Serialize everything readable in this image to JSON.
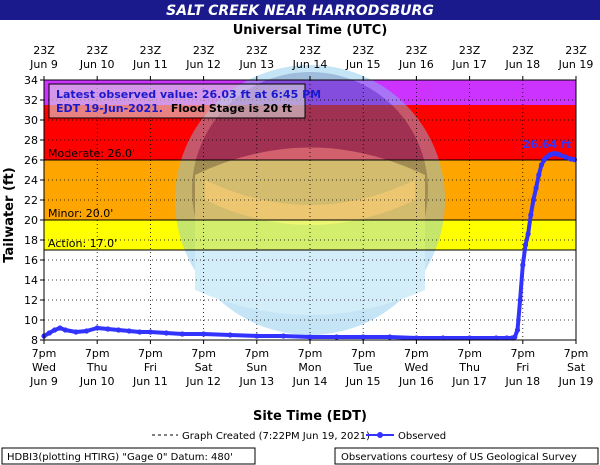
{
  "header": {
    "title": "SALT CREEK NEAR HARRODSBURG",
    "top_axis_title": "Universal Time (UTC)"
  },
  "chart_data": {
    "type": "line",
    "title": "SALT CREEK NEAR HARRODSBURG",
    "xlabel": "Site Time (EDT)",
    "x2label": "Universal Time (UTC)",
    "ylabel": "Tailwater (ft)",
    "ylim": [
      8,
      34
    ],
    "yticks": [
      8,
      10,
      12,
      14,
      16,
      18,
      20,
      22,
      24,
      26,
      28,
      30,
      32,
      34
    ],
    "xlim": [
      0,
      10
    ],
    "x_ticks_bottom": [
      {
        "time": "7pm",
        "day": "Wed",
        "date": "Jun 9"
      },
      {
        "time": "7pm",
        "day": "Thu",
        "date": "Jun 10"
      },
      {
        "time": "7pm",
        "day": "Fri",
        "date": "Jun 11"
      },
      {
        "time": "7pm",
        "day": "Sat",
        "date": "Jun 12"
      },
      {
        "time": "7pm",
        "day": "Sun",
        "date": "Jun 13"
      },
      {
        "time": "7pm",
        "day": "Mon",
        "date": "Jun 14"
      },
      {
        "time": "7pm",
        "day": "Tue",
        "date": "Jun 15"
      },
      {
        "time": "7pm",
        "day": "Wed",
        "date": "Jun 16"
      },
      {
        "time": "7pm",
        "day": "Thu",
        "date": "Jun 17"
      },
      {
        "time": "7pm",
        "day": "Fri",
        "date": "Jun 18"
      },
      {
        "time": "7pm",
        "day": "Sat",
        "date": "Jun 19"
      }
    ],
    "x_ticks_top": [
      {
        "time": "23Z",
        "date": "Jun 9"
      },
      {
        "time": "23Z",
        "date": "Jun 10"
      },
      {
        "time": "23Z",
        "date": "Jun 11"
      },
      {
        "time": "23Z",
        "date": "Jun 12"
      },
      {
        "time": "23Z",
        "date": "Jun 13"
      },
      {
        "time": "23Z",
        "date": "Jun 14"
      },
      {
        "time": "23Z",
        "date": "Jun 15"
      },
      {
        "time": "23Z",
        "date": "Jun 16"
      },
      {
        "time": "23Z",
        "date": "Jun 17"
      },
      {
        "time": "23Z",
        "date": "Jun 18"
      },
      {
        "time": "23Z",
        "date": "Jun 19"
      }
    ],
    "flood_bands": [
      {
        "name": "Action",
        "label": "Action: 17.0'",
        "from": 17,
        "to": 20,
        "color": "#ffff00"
      },
      {
        "name": "Minor",
        "label": "Minor: 20.0'",
        "from": 20,
        "to": 26,
        "color": "#ffa500"
      },
      {
        "name": "Moderate",
        "label": "Moderate: 26.0'",
        "from": 26,
        "to": 31.5,
        "color": "#ff0000"
      },
      {
        "name": "Major",
        "label": "",
        "from": 31.5,
        "to": 34,
        "color": "#cc33ff"
      }
    ],
    "annotations": {
      "latest_line1": "Latest observed value: 26.03 ft at 6:45 PM",
      "latest_line2": "EDT 19-Jun-2021.",
      "flood_stage": "Flood Stage is 20 ft",
      "peak_label": "26.64 ft"
    },
    "series": [
      {
        "name": "Observed",
        "color": "#3333ff",
        "x": [
          0.0,
          0.1,
          0.2,
          0.3,
          0.4,
          0.6,
          0.8,
          1.0,
          1.2,
          1.4,
          1.6,
          1.8,
          2.0,
          2.3,
          2.6,
          3.0,
          3.5,
          4.0,
          4.5,
          5.0,
          5.5,
          6.0,
          6.5,
          7.0,
          7.5,
          8.0,
          8.5,
          8.7,
          8.8,
          8.85,
          8.9,
          8.95,
          9.0,
          9.05,
          9.1,
          9.15,
          9.2,
          9.25,
          9.3,
          9.35,
          9.4,
          9.45,
          9.5,
          9.55,
          9.6,
          9.65,
          9.7,
          9.8,
          9.9,
          9.97
        ],
        "values": [
          8.4,
          8.7,
          9.0,
          9.2,
          9.0,
          8.8,
          8.9,
          9.2,
          9.1,
          9.0,
          8.9,
          8.8,
          8.8,
          8.7,
          8.6,
          8.6,
          8.5,
          8.4,
          8.4,
          8.3,
          8.3,
          8.3,
          8.3,
          8.2,
          8.2,
          8.2,
          8.2,
          8.2,
          8.2,
          8.3,
          9.0,
          12.0,
          15.5,
          17.5,
          18.6,
          20.5,
          22.0,
          23.2,
          24.5,
          25.5,
          26.0,
          26.3,
          26.5,
          26.6,
          26.64,
          26.6,
          26.5,
          26.3,
          26.1,
          26.03
        ]
      }
    ],
    "legend": {
      "created": "Graph Created (7:22PM Jun 19, 2021)",
      "observed": "Observed"
    },
    "grid": true
  },
  "footer": {
    "left": "HDBI3(plotting HTIRG) \"Gage 0\" Datum: 480'",
    "right": "Observations courtesy of US Geological Survey"
  }
}
